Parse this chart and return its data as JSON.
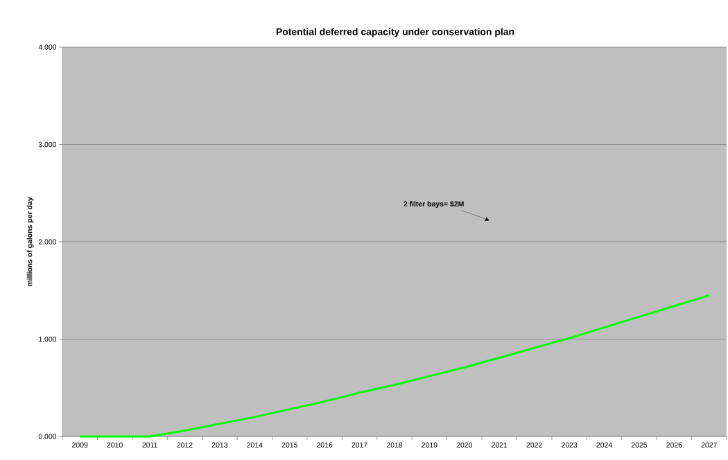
{
  "chart_data": {
    "type": "line",
    "title": "Potential deferred capacity under conservation plan",
    "ylabel": "millions of galons per day",
    "categories": [
      "2009",
      "2010",
      "2011",
      "2012",
      "2013",
      "2014",
      "2015",
      "2016",
      "2017",
      "2018",
      "2019",
      "2020",
      "2021",
      "2022",
      "2023",
      "2024",
      "2025",
      "2026",
      "2027"
    ],
    "series": [
      {
        "color": "#00ff00",
        "values": [
          0,
          0,
          0,
          0.06,
          0.13,
          0.2,
          0.28,
          0.36,
          0.45,
          0.53,
          0.62,
          0.71,
          0.81,
          0.91,
          1.01,
          1.12,
          1.23,
          1.34,
          1.45
        ]
      }
    ],
    "ylim": [
      0,
      4
    ],
    "yticks": [
      {
        "value": 0,
        "label": "0.000"
      },
      {
        "value": 1,
        "label": "1.000"
      },
      {
        "value": 2,
        "label": "2.000"
      },
      {
        "value": 3,
        "label": "3.000"
      },
      {
        "value": 4,
        "label": "4.000"
      }
    ],
    "grid": "y",
    "marker": "none",
    "line_style": "solid",
    "annotations": [
      "2 filter bays= $2M"
    ]
  }
}
